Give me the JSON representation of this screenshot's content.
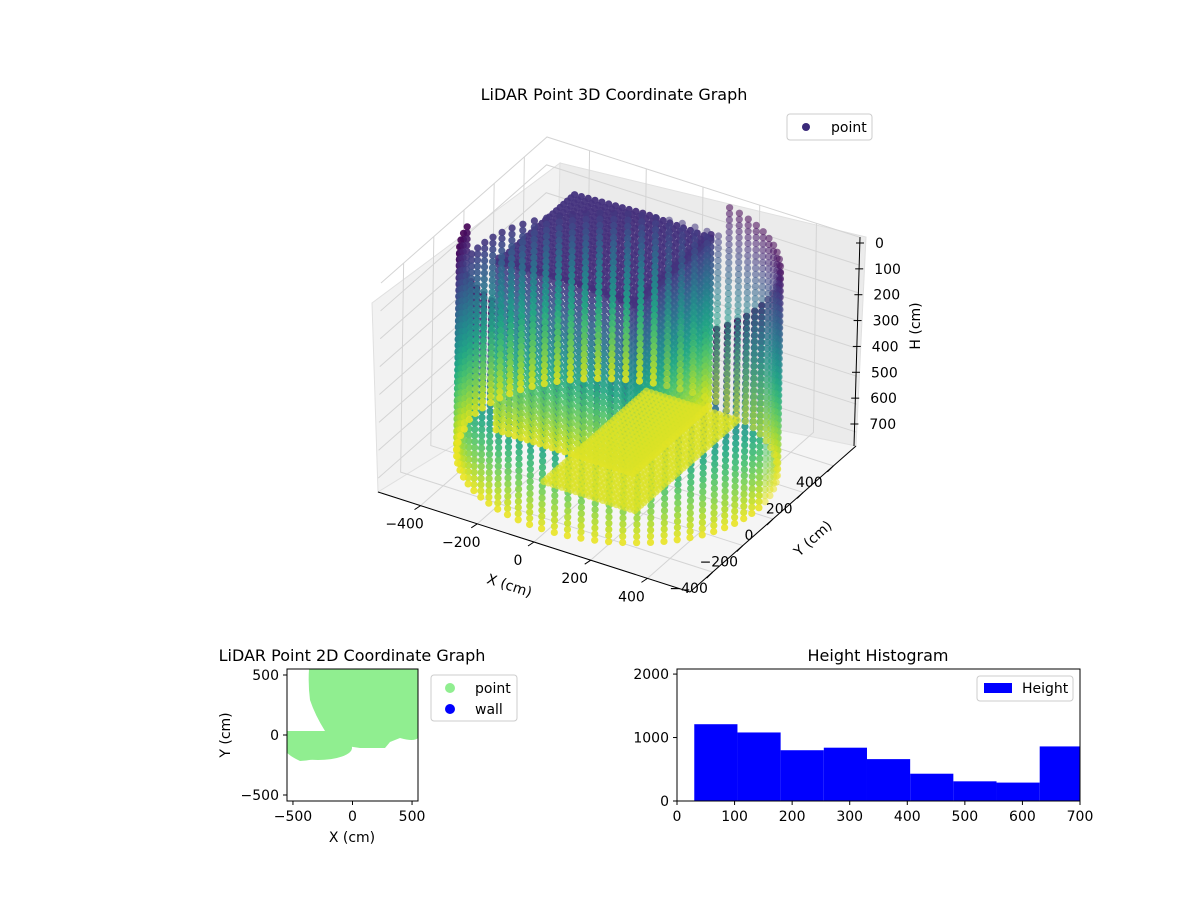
{
  "chart_data": [
    {
      "type": "scatter3d",
      "title": "LiDAR Point 3D Coordinate Graph",
      "xlabel": "X (cm)",
      "ylabel": "Y (cm)",
      "zlabel": "H (cm)",
      "xticks": [
        -400,
        -200,
        0,
        200,
        400
      ],
      "yticks": [
        -400,
        -200,
        0,
        200,
        400
      ],
      "zticks": [
        0,
        100,
        200,
        300,
        400,
        500,
        600,
        700
      ],
      "xlim": [
        -550,
        550
      ],
      "ylim": [
        -550,
        550
      ],
      "zlim": [
        0,
        750
      ],
      "z_inverted": true,
      "colormap": "viridis",
      "legend": [
        {
          "label": "point",
          "color": "#3b2a7a"
        }
      ],
      "legend_position": "top-right",
      "wall_radius_cm": 500,
      "wall_height_range_cm": [
        0,
        730
      ],
      "inner_block": {
        "x_range": [
          -400,
          80
        ],
        "y_range": [
          -50,
          470
        ],
        "top_height_cm": 100
      }
    },
    {
      "type": "scatter",
      "title": "LiDAR Point 2D Coordinate Graph",
      "xlabel": "X (cm)",
      "ylabel": "Y (cm)",
      "xlim": [
        -550,
        550
      ],
      "ylim": [
        -550,
        550
      ],
      "xticks": [
        -500,
        0,
        500
      ],
      "yticks": [
        -500,
        0,
        500
      ],
      "series": [
        {
          "name": "point",
          "color": "#90ee90"
        },
        {
          "name": "wall",
          "color": "#0000ff"
        }
      ],
      "legend_position": "outside-right"
    },
    {
      "type": "histogram",
      "title": "Height Histogram",
      "xlabel": "",
      "ylabel": "",
      "xlim": [
        0,
        700
      ],
      "ylim": [
        0,
        2080
      ],
      "xticks": [
        0,
        100,
        200,
        300,
        400,
        500,
        600,
        700
      ],
      "yticks": [
        0,
        1000,
        2000
      ],
      "bin_edges": [
        30,
        105,
        180,
        255,
        330,
        405,
        480,
        555,
        630,
        705
      ],
      "values": [
        1210,
        1080,
        800,
        840,
        660,
        430,
        310,
        290,
        860
      ],
      "color": "#0000ff",
      "legend": [
        {
          "label": "Height",
          "color": "#0000ff"
        }
      ],
      "legend_position": "top-right"
    }
  ]
}
